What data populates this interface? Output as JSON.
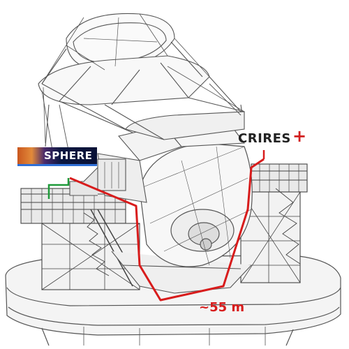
{
  "labels": {
    "sphere": "SPHERE",
    "crires": "CRIRES",
    "crires_plus": "+",
    "distance": "~55 m"
  },
  "colors": {
    "fiber_path": "#d81c1c",
    "sphere_connector": "#1f9a3a",
    "line_art": "#555555",
    "crires_plus": "#d21f1f"
  }
}
